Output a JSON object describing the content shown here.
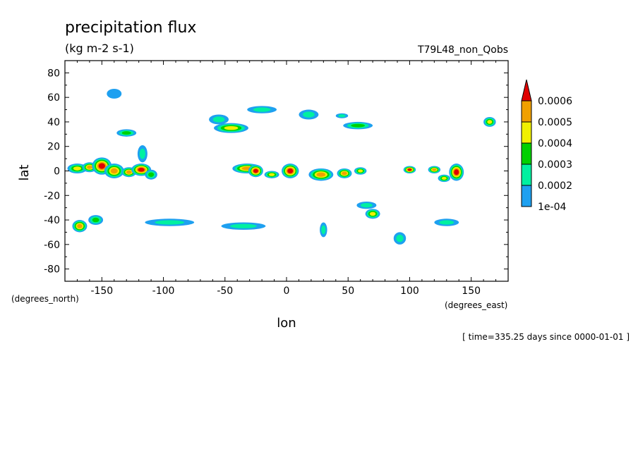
{
  "chart_data": {
    "type": "heatmap",
    "title": "precipitation flux",
    "subtitle": "(kg m-2 s-1)",
    "run_label": "T79L48_non_Qobs",
    "xlabel": "lon",
    "ylabel": "lat",
    "x_units": "(degrees_east)",
    "y_units": "(degrees_north)",
    "time_label": "[ time=335.25 days since 0000-01-01 ]",
    "xlim": [
      -180,
      180
    ],
    "ylim": [
      -90,
      90
    ],
    "x_ticks": [
      -150,
      -100,
      -50,
      0,
      50,
      100,
      150
    ],
    "x_tick_labels": [
      "-150",
      "-100",
      "-50",
      "0",
      "50",
      "100",
      "150"
    ],
    "y_ticks": [
      80,
      60,
      40,
      20,
      0,
      -20,
      -40,
      -60,
      -80
    ],
    "y_tick_labels": [
      "80",
      "60",
      "40",
      "20",
      "0",
      "-20",
      "-40",
      "-60",
      "-80"
    ],
    "grid": false,
    "colorbar": {
      "placement": "right",
      "labels": [
        "0.0006",
        "0.0005",
        "0.0004",
        "0.0003",
        "0.0002",
        "1e-04"
      ],
      "levels": [
        0.0001,
        0.0002,
        0.0003,
        0.0004,
        0.0005,
        0.0006
      ],
      "colors": [
        "#1ea0f0",
        "#00f0a0",
        "#00d000",
        "#f0f000",
        "#f0a000",
        "#e00000"
      ],
      "extend": "max"
    },
    "features": [
      {
        "lon": -170,
        "lat": 2,
        "dlon": 8,
        "dlat": 4,
        "max_level": 4
      },
      {
        "lon": -160,
        "lat": 3,
        "dlon": 6,
        "dlat": 4,
        "max_level": 5
      },
      {
        "lon": -150,
        "lat": 4,
        "dlon": 8,
        "dlat": 7,
        "max_level": 6
      },
      {
        "lon": -140,
        "lat": 0,
        "dlon": 8,
        "dlat": 6,
        "max_level": 5
      },
      {
        "lon": -128,
        "lat": -1,
        "dlon": 6,
        "dlat": 4,
        "max_level": 5
      },
      {
        "lon": -118,
        "lat": 1,
        "dlon": 8,
        "dlat": 5,
        "max_level": 6
      },
      {
        "lon": -110,
        "lat": -3,
        "dlon": 5,
        "dlat": 4,
        "max_level": 3
      },
      {
        "lon": -117,
        "lat": 14,
        "dlon": 4,
        "dlat": 7,
        "max_level": 2
      },
      {
        "lon": -32,
        "lat": 2,
        "dlon": 12,
        "dlat": 4,
        "max_level": 5
      },
      {
        "lon": -25,
        "lat": 0,
        "dlon": 6,
        "dlat": 5,
        "max_level": 6
      },
      {
        "lon": -12,
        "lat": -3,
        "dlon": 6,
        "dlat": 3,
        "max_level": 4
      },
      {
        "lon": 3,
        "lat": 0,
        "dlon": 7,
        "dlat": 6,
        "max_level": 6
      },
      {
        "lon": 28,
        "lat": -3,
        "dlon": 10,
        "dlat": 5,
        "max_level": 5
      },
      {
        "lon": 47,
        "lat": -2,
        "dlon": 6,
        "dlat": 4,
        "max_level": 5
      },
      {
        "lon": 60,
        "lat": 0,
        "dlon": 5,
        "dlat": 3,
        "max_level": 4
      },
      {
        "lon": 100,
        "lat": 1,
        "dlon": 5,
        "dlat": 3,
        "max_level": 6
      },
      {
        "lon": 120,
        "lat": 1,
        "dlon": 5,
        "dlat": 3,
        "max_level": 5
      },
      {
        "lon": 138,
        "lat": -1,
        "dlon": 6,
        "dlat": 7,
        "max_level": 6
      },
      {
        "lon": 128,
        "lat": -6,
        "dlon": 5,
        "dlat": 3,
        "max_level": 4
      },
      {
        "lon": -45,
        "lat": 35,
        "dlon": 14,
        "dlat": 4,
        "max_level": 4
      },
      {
        "lon": -55,
        "lat": 42,
        "dlon": 8,
        "dlat": 4,
        "max_level": 2
      },
      {
        "lon": -130,
        "lat": 31,
        "dlon": 8,
        "dlat": 3,
        "max_level": 3
      },
      {
        "lon": -20,
        "lat": 50,
        "dlon": 12,
        "dlat": 3,
        "max_level": 2
      },
      {
        "lon": 18,
        "lat": 46,
        "dlon": 8,
        "dlat": 4,
        "max_level": 2
      },
      {
        "lon": 58,
        "lat": 37,
        "dlon": 12,
        "dlat": 3,
        "max_level": 3
      },
      {
        "lon": 45,
        "lat": 45,
        "dlon": 5,
        "dlat": 2,
        "max_level": 2
      },
      {
        "lon": 165,
        "lat": 40,
        "dlon": 5,
        "dlat": 4,
        "max_level": 4
      },
      {
        "lon": -140,
        "lat": 63,
        "dlon": 6,
        "dlat": 4,
        "max_level": 1
      },
      {
        "lon": -168,
        "lat": -45,
        "dlon": 6,
        "dlat": 5,
        "max_level": 5
      },
      {
        "lon": -155,
        "lat": -40,
        "dlon": 6,
        "dlat": 4,
        "max_level": 3
      },
      {
        "lon": -95,
        "lat": -42,
        "dlon": 20,
        "dlat": 3,
        "max_level": 2
      },
      {
        "lon": -35,
        "lat": -45,
        "dlon": 18,
        "dlat": 3,
        "max_level": 2
      },
      {
        "lon": 70,
        "lat": -35,
        "dlon": 6,
        "dlat": 4,
        "max_level": 4
      },
      {
        "lon": 65,
        "lat": -28,
        "dlon": 8,
        "dlat": 3,
        "max_level": 2
      },
      {
        "lon": 130,
        "lat": -42,
        "dlon": 10,
        "dlat": 3,
        "max_level": 2
      },
      {
        "lon": 92,
        "lat": -55,
        "dlon": 5,
        "dlat": 5,
        "max_level": 2
      },
      {
        "lon": 30,
        "lat": -48,
        "dlon": 3,
        "dlat": 6,
        "max_level": 2
      }
    ]
  }
}
